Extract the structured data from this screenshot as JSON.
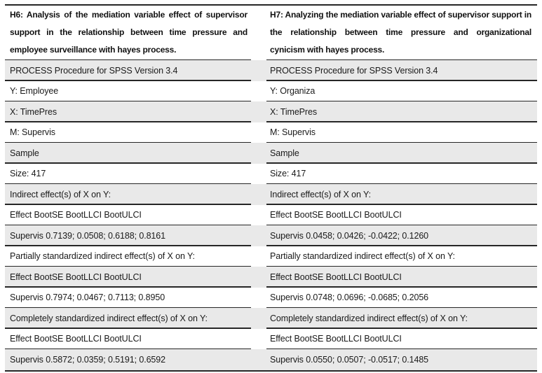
{
  "table": {
    "columns": [
      {
        "id": "H6",
        "title": "H6: Analysis of the mediation variable effect of supervisor support in the relationship between time pressure and employee surveillance with hayes process.",
        "rows": [
          "PROCESS Procedure for SPSS Version 3.4",
          "Y: Employee",
          "X: TimePres",
          "M: Supervis",
          "Sample",
          "Size: 417",
          "Indirect effect(s) of X on Y:",
          "Effect BootSE BootLLCI BootULCI",
          "Supervis 0.7139; 0.0508; 0.6188; 0.8161",
          "Partially standardized indirect effect(s) of X on Y:",
          "Effect BootSE BootLLCI BootULCI",
          "Supervis 0.7974; 0.0467; 0.7113; 0.8950",
          "Completely standardized indirect effect(s) of X on Y:",
          "Effect BootSE BootLLCI BootULCI",
          "Supervis 0.5872; 0.0359; 0.5191; 0.6592"
        ]
      },
      {
        "id": "H7",
        "title": "H7: Analyzing the mediation variable effect of supervisor support in the relationship between time pressure and organizational cynicism with hayes process.",
        "rows": [
          "PROCESS Procedure for SPSS Version 3.4",
          "Y: Organiza",
          "X: TimePres",
          "M: Supervis",
          "Sample",
          "Size: 417",
          "Indirect effect(s) of X on Y:",
          "Effect BootSE BootLLCI BootULCI",
          "Supervis 0.0458; 0.0426; -0.0422; 0.1260",
          "Partially standardized indirect effect(s) of X on Y:",
          "Effect BootSE BootLLCI BootULCI",
          "Supervis 0.0748; 0.0696; -0.0685; 0.2056",
          "Completely standardized indirect effect(s) of X on Y:",
          "Effect BootSE BootLLCI BootULCI",
          "Supervis 0.0550; 0.0507; -0.0517; 0.1485"
        ]
      }
    ]
  },
  "colors": {
    "row_shade": "#e9e9e9",
    "rule": "#262626",
    "text": "#1a1a1a"
  }
}
